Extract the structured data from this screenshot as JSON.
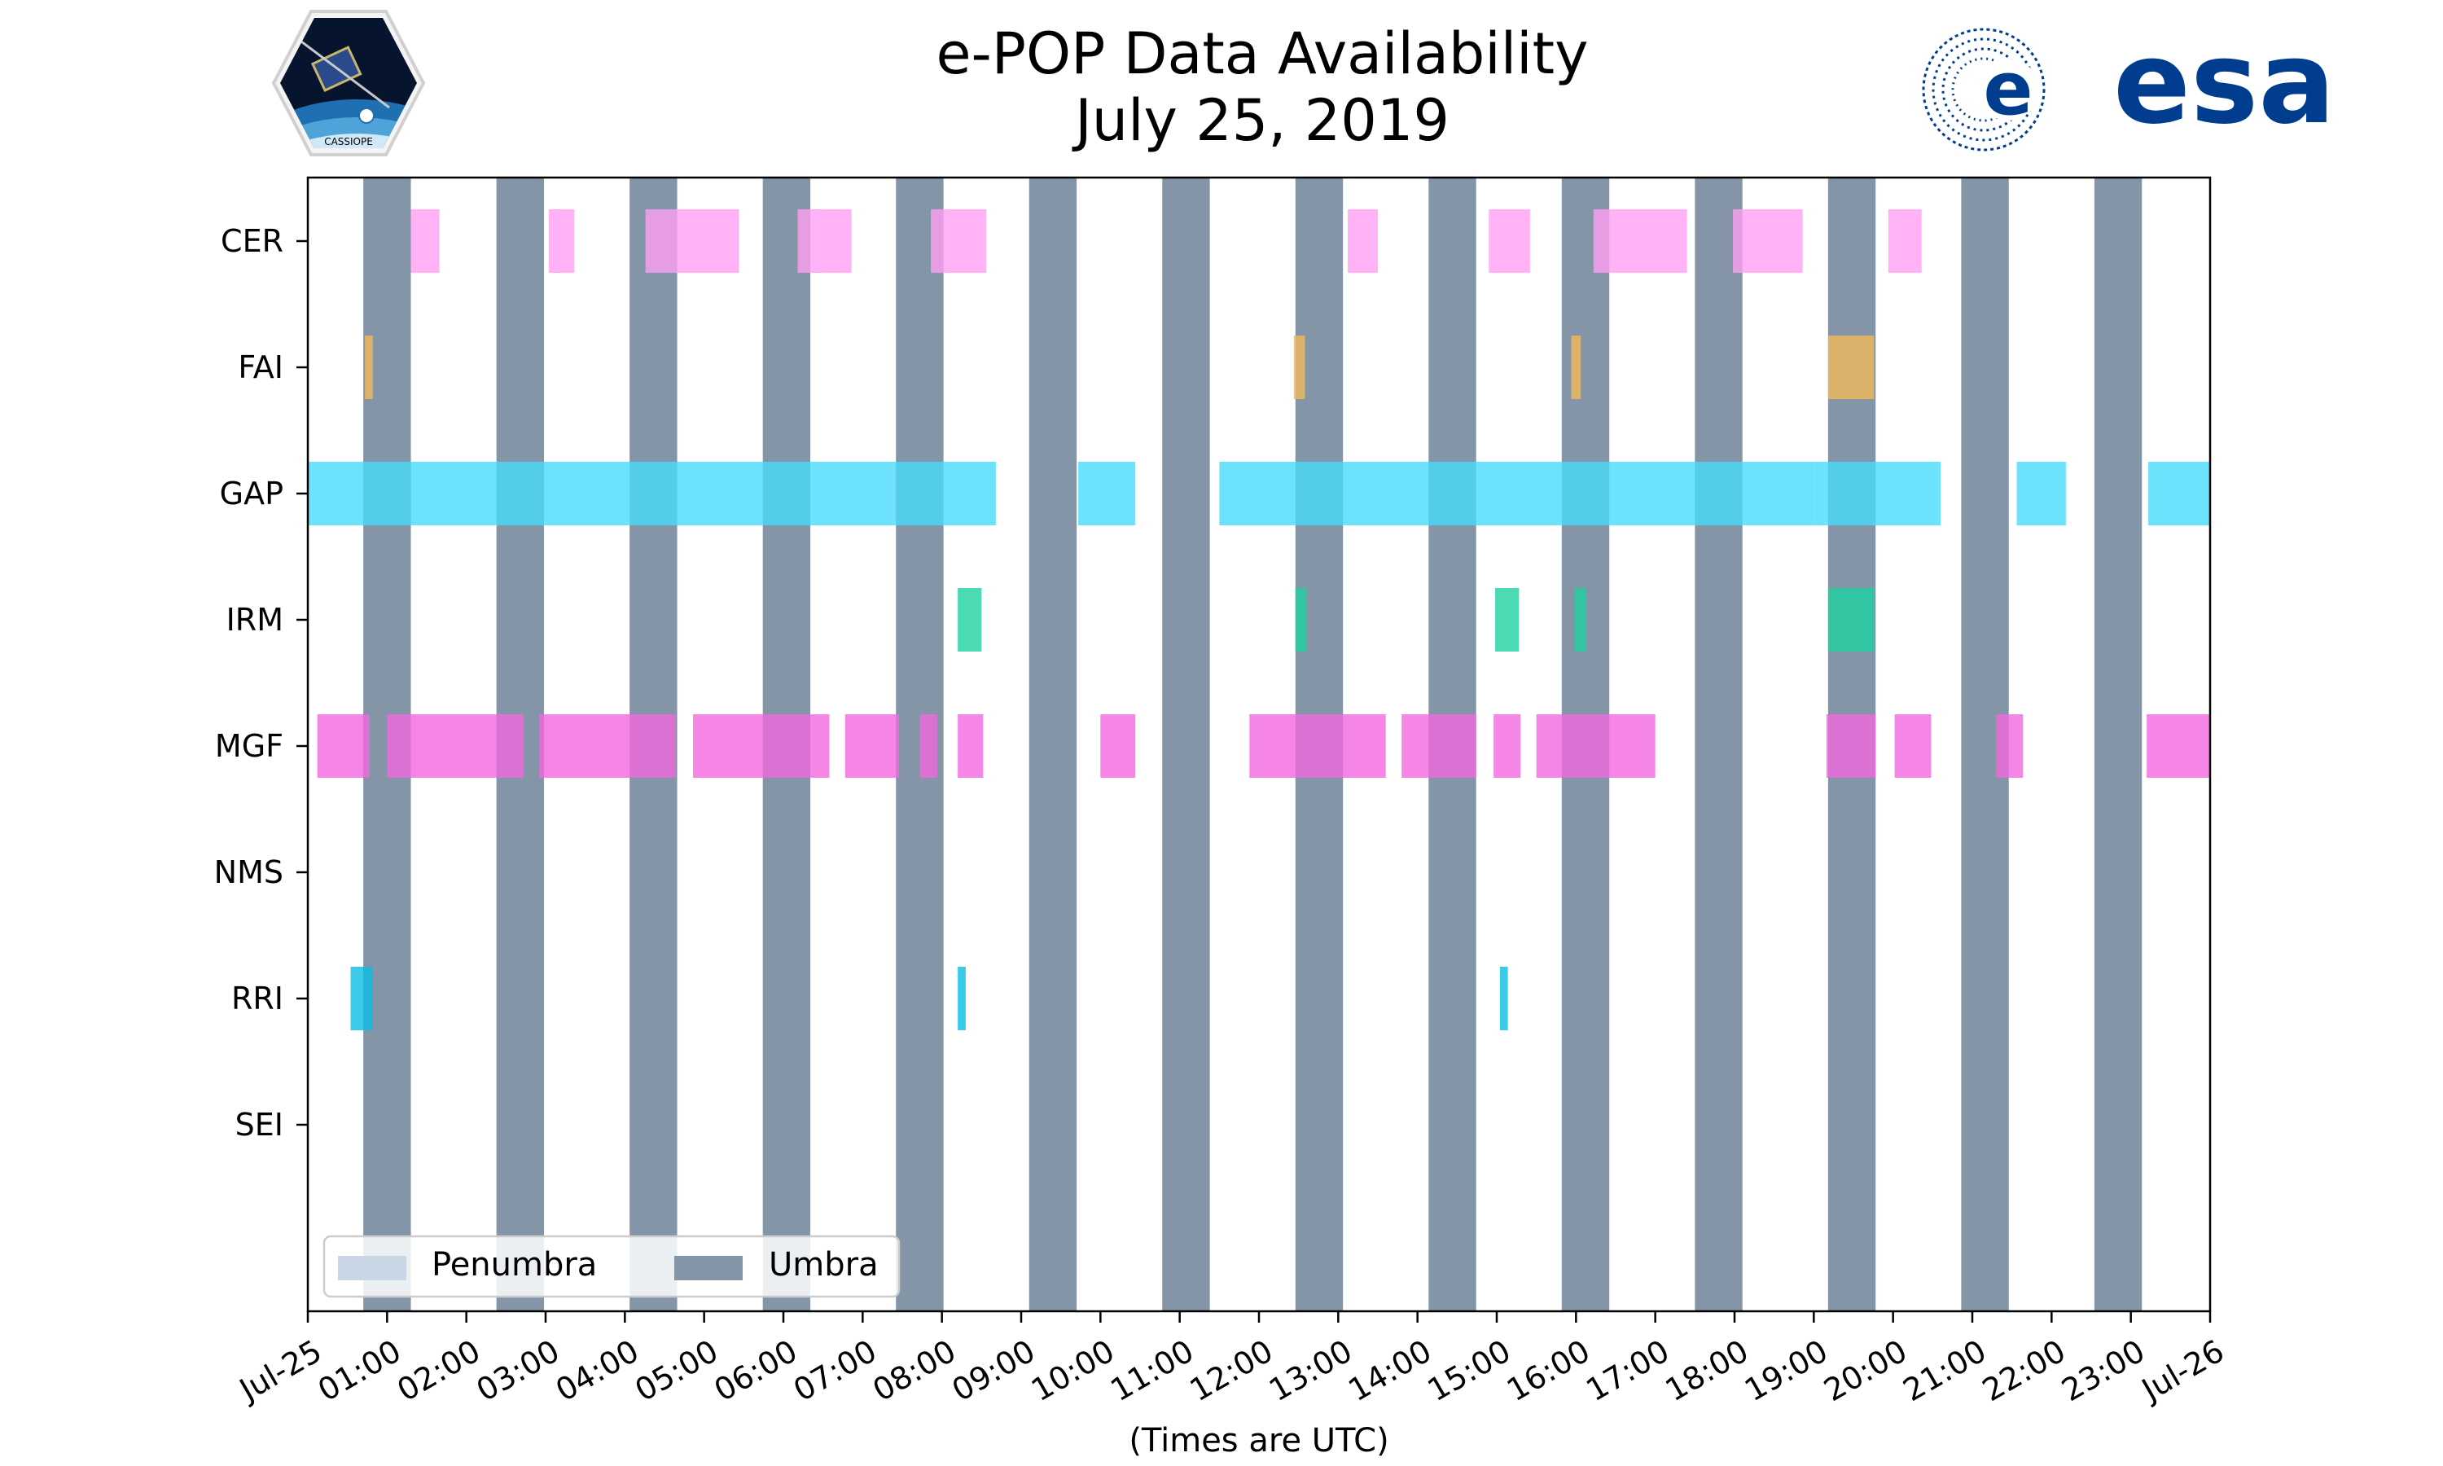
{
  "chart_data": {
    "type": "timeline",
    "title": "e-POP Data Availability",
    "subtitle": "July 25, 2019",
    "xlabel": "(Times are UTC)",
    "x_range_hours": [
      0,
      24
    ],
    "x_ticks": [
      {
        "hour": 0,
        "label": "Jul-25"
      },
      {
        "hour": 1,
        "label": "01:00"
      },
      {
        "hour": 2,
        "label": "02:00"
      },
      {
        "hour": 3,
        "label": "03:00"
      },
      {
        "hour": 4,
        "label": "04:00"
      },
      {
        "hour": 5,
        "label": "05:00"
      },
      {
        "hour": 6,
        "label": "06:00"
      },
      {
        "hour": 7,
        "label": "07:00"
      },
      {
        "hour": 8,
        "label": "08:00"
      },
      {
        "hour": 9,
        "label": "09:00"
      },
      {
        "hour": 10,
        "label": "10:00"
      },
      {
        "hour": 11,
        "label": "11:00"
      },
      {
        "hour": 12,
        "label": "12:00"
      },
      {
        "hour": 13,
        "label": "13:00"
      },
      {
        "hour": 14,
        "label": "14:00"
      },
      {
        "hour": 15,
        "label": "15:00"
      },
      {
        "hour": 16,
        "label": "16:00"
      },
      {
        "hour": 17,
        "label": "17:00"
      },
      {
        "hour": 18,
        "label": "18:00"
      },
      {
        "hour": 19,
        "label": "19:00"
      },
      {
        "hour": 20,
        "label": "20:00"
      },
      {
        "hour": 21,
        "label": "21:00"
      },
      {
        "hour": 22,
        "label": "22:00"
      },
      {
        "hour": 23,
        "label": "23:00"
      },
      {
        "hour": 24,
        "label": "Jul-26"
      }
    ],
    "instruments": [
      "CER",
      "FAI",
      "GAP",
      "IRM",
      "MGF",
      "NMS",
      "RRI",
      "SEI"
    ],
    "umbra_intervals": [
      [
        0.7,
        1.3
      ],
      [
        2.38,
        2.98
      ],
      [
        4.06,
        4.66
      ],
      [
        5.74,
        6.34
      ],
      [
        7.42,
        8.02
      ],
      [
        9.1,
        9.7
      ],
      [
        10.78,
        11.38
      ],
      [
        12.46,
        13.06
      ],
      [
        14.14,
        14.74
      ],
      [
        15.82,
        16.42
      ],
      [
        17.5,
        18.1
      ],
      [
        19.18,
        19.78
      ],
      [
        20.86,
        21.46
      ],
      [
        22.54,
        23.14
      ]
    ],
    "series": [
      {
        "name": "CER",
        "color": "#ff9ff3",
        "intervals": [
          [
            1.3,
            1.66
          ],
          [
            3.04,
            3.36
          ],
          [
            4.26,
            5.44
          ],
          [
            6.18,
            6.86
          ],
          [
            7.86,
            8.56
          ],
          [
            13.12,
            13.5
          ],
          [
            14.9,
            15.42
          ],
          [
            16.22,
            17.4
          ],
          [
            17.98,
            18.86
          ],
          [
            19.94,
            20.36
          ]
        ]
      },
      {
        "name": "FAI",
        "color": "#f0b95a",
        "intervals": [
          [
            0.72,
            0.82
          ],
          [
            12.44,
            12.58
          ],
          [
            15.94,
            16.06
          ],
          [
            19.18,
            19.76
          ]
        ]
      },
      {
        "name": "GAP",
        "color": "#48dbfb",
        "intervals": [
          [
            0.0,
            7.38
          ],
          [
            7.38,
            8.68
          ],
          [
            9.72,
            10.44
          ],
          [
            11.5,
            14.4
          ],
          [
            14.4,
            19.0
          ],
          [
            19.0,
            20.6
          ],
          [
            21.56,
            22.18
          ],
          [
            23.22,
            24.0
          ]
        ]
      },
      {
        "name": "IRM",
        "color": "#1dd1a1",
        "intervals": [
          [
            8.2,
            8.5
          ],
          [
            12.46,
            12.6
          ],
          [
            14.98,
            15.28
          ],
          [
            15.98,
            16.12
          ],
          [
            19.18,
            19.76
          ]
        ]
      },
      {
        "name": "MGF",
        "color": "#f368e0",
        "intervals": [
          [
            0.12,
            0.78
          ],
          [
            1.0,
            2.72
          ],
          [
            2.92,
            4.64
          ],
          [
            4.86,
            6.58
          ],
          [
            6.78,
            7.46
          ],
          [
            7.72,
            7.94
          ],
          [
            8.2,
            8.52
          ],
          [
            10.0,
            10.44
          ],
          [
            11.88,
            13.6
          ],
          [
            13.8,
            14.74
          ],
          [
            14.96,
            15.3
          ],
          [
            15.5,
            17.0
          ],
          [
            19.16,
            19.78
          ],
          [
            20.02,
            20.48
          ],
          [
            21.3,
            21.64
          ],
          [
            23.2,
            24.0
          ]
        ]
      },
      {
        "name": "NMS",
        "color": "#cccccc",
        "intervals": []
      },
      {
        "name": "RRI",
        "color": "#0abde3",
        "intervals": [
          [
            0.54,
            0.82
          ],
          [
            8.2,
            8.3
          ],
          [
            15.04,
            15.14
          ]
        ]
      },
      {
        "name": "SEI",
        "color": "#cccccc",
        "intervals": []
      }
    ],
    "legend": {
      "position": "bottom-left",
      "entries": [
        {
          "label": "Penumbra",
          "color": "#c8d6e5"
        },
        {
          "label": "Umbra",
          "color": "#8395a7"
        }
      ]
    }
  },
  "logos": {
    "left": "CASSIOPE",
    "right": "esa"
  },
  "colors": {
    "umbra": "#8395a7",
    "penumbra": "#c8d6e5",
    "esa_blue": "#003d8f"
  }
}
